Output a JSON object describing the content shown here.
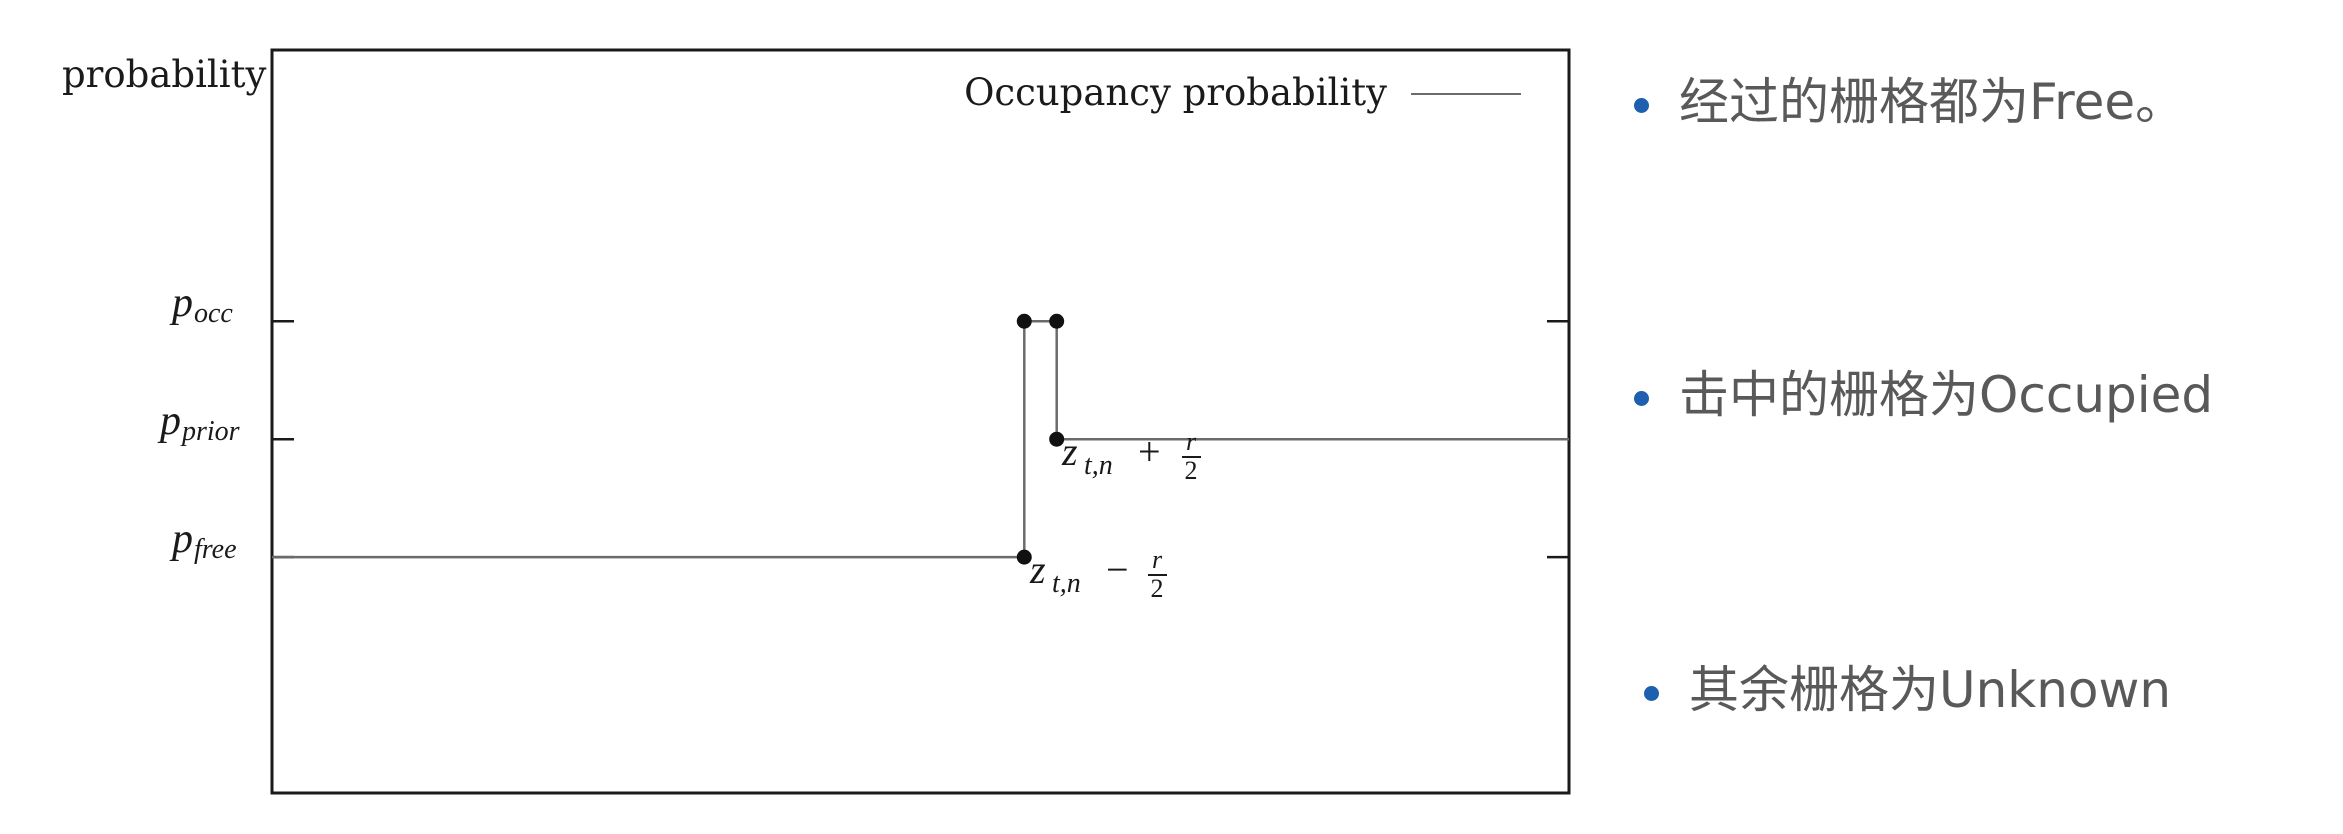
{
  "chart_data": {
    "type": "line",
    "y_axis_label": "probability",
    "legend": {
      "label": "Occupancy probability",
      "placement": "top-right"
    },
    "y_levels": [
      {
        "key": "p_free",
        "symbol": "p",
        "subscript": "free",
        "value": 1
      },
      {
        "key": "p_prior",
        "symbol": "p",
        "subscript": "prior",
        "value": 2
      },
      {
        "key": "p_occ",
        "symbol": "p",
        "subscript": "occ",
        "value": 3
      }
    ],
    "ylim": [
      -1,
      5.3
    ],
    "xlim": [
      0,
      10
    ],
    "series": [
      {
        "points": [
          {
            "x": 0,
            "y": 1
          },
          {
            "x": 5.8,
            "y": 1
          },
          {
            "x": 5.8,
            "y": 3
          },
          {
            "x": 6.05,
            "y": 3
          },
          {
            "x": 6.05,
            "y": 2
          },
          {
            "x": 10,
            "y": 2
          }
        ]
      }
    ],
    "markers": [
      {
        "x": 5.8,
        "y": 1
      },
      {
        "x": 5.8,
        "y": 3
      },
      {
        "x": 6.05,
        "y": 3
      },
      {
        "x": 6.05,
        "y": 2
      }
    ],
    "annotations": [
      {
        "base": "z",
        "subscript": "t,n",
        "operator": "−",
        "num": "r",
        "den": "2"
      },
      {
        "base": "z",
        "subscript": "t,n",
        "operator": "+",
        "num": "r",
        "den": "2"
      }
    ]
  },
  "bullets": [
    "经过的栅格都为Free。",
    "击中的栅格为Occupied",
    "其余栅格为Unknown"
  ],
  "colors": {
    "line": "#6b6b6b",
    "frame": "#1a1a1a",
    "marker": "#111111",
    "bullet_dot": "#1f5fb0",
    "bullet_text": "#595959"
  }
}
